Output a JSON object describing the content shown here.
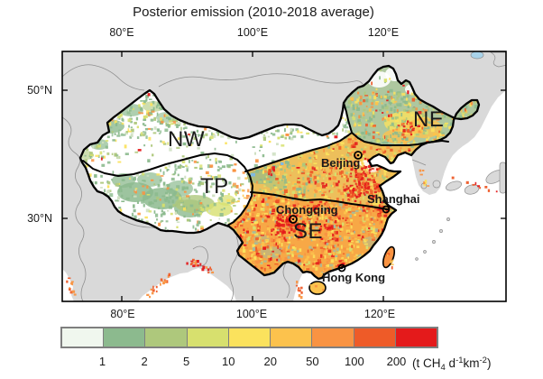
{
  "title": "Posterior emission (2010-2018 average)",
  "axes": {
    "top": [
      "80°E",
      "100°E",
      "120°E"
    ],
    "bottom": [
      "80°E",
      "100°E",
      "120°E"
    ],
    "left": [
      "50°N",
      "30°N"
    ]
  },
  "regions": {
    "nw": "NW",
    "tp": "TP",
    "ne": "NE",
    "se": "SE"
  },
  "cities": {
    "beijing": "Beijing",
    "shanghai": "Shanghai",
    "chongqing": "Chongqing",
    "hongkong": "Hong Kong"
  },
  "colorbar": {
    "tick_labels": [
      "1",
      "2",
      "5",
      "10",
      "20",
      "50",
      "100",
      "200"
    ],
    "colors": [
      "#f0f7ee",
      "#8cba8e",
      "#aec87c",
      "#d7e06e",
      "#fbe25d",
      "#fcc24d",
      "#f99342",
      "#ee5b28",
      "#e41a1b"
    ],
    "unit": {
      "open": "(t CH",
      "sub": "4",
      "mid": " d",
      "sup1": "-1",
      "km": "km",
      "sup2": "-2",
      "close": ")"
    }
  },
  "map_colors": {
    "ocean": "#ffffff",
    "land": "#d9d9d9",
    "country_border": "#8f8f8f",
    "china_outline": "#000000",
    "lake": "#a9d3ea"
  },
  "chart_data": {
    "type": "heatmap",
    "title": "Posterior emission (2010-2018 average)",
    "colorbar_boundaries": [
      1,
      2,
      5,
      10,
      20,
      50,
      100,
      200
    ],
    "unit": "t CH4 d-1 km-2",
    "lon_ticks": [
      "80°E",
      "100°E",
      "120°E"
    ],
    "lat_ticks": [
      "50°N",
      "30°N"
    ],
    "regions": [
      "NW",
      "TP",
      "NE",
      "SE"
    ],
    "cities": [
      "Beijing",
      "Shanghai",
      "Chongqing",
      "Hong Kong"
    ]
  }
}
